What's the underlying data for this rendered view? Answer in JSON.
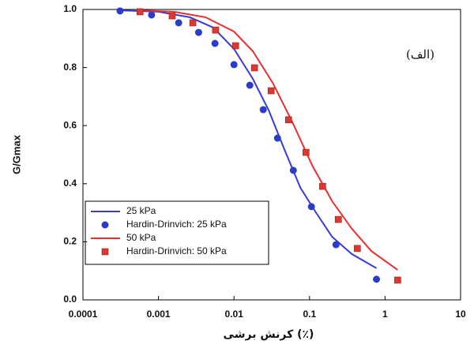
{
  "chart_data": {
    "type": "line",
    "xlabel": "کرنش برشی (٪)",
    "ylabel": "G/Gmax",
    "annotation": "(الف)",
    "xscale": "log",
    "xlim": [
      0.0001,
      10
    ],
    "xticks": [
      0.0001,
      0.001,
      0.01,
      0.1,
      1,
      10
    ],
    "ylim": [
      0,
      1
    ],
    "yticks": [
      {
        "value": 0,
        "label": "0.0"
      },
      0.2,
      0.4,
      0.6,
      0.8,
      {
        "value": 1,
        "label": "1.0"
      }
    ],
    "legend": "lower left",
    "series": [
      {
        "name": "25 kPa",
        "color": "#3a3ad8",
        "mode": "line",
        "x": [
          0.00031,
          0.001,
          0.0026,
          0.0053,
          0.01,
          0.0178,
          0.0289,
          0.0468,
          0.0758,
          0.123,
          0.199,
          0.363,
          0.77
        ],
        "values": [
          0.997,
          0.992,
          0.973,
          0.938,
          0.864,
          0.761,
          0.652,
          0.516,
          0.386,
          0.299,
          0.217,
          0.158,
          0.109
        ]
      },
      {
        "name": "Hardin-Drinvich: 25 kPa",
        "color": "#2a3cc8",
        "mode": "markers",
        "marker": "circle",
        "x": [
          0.00031,
          0.00081,
          0.00185,
          0.0034,
          0.0056,
          0.01,
          0.0162,
          0.0244,
          0.0377,
          0.061,
          0.106,
          0.224,
          0.77
        ],
        "values": [
          0.995,
          0.981,
          0.954,
          0.921,
          0.883,
          0.81,
          0.739,
          0.655,
          0.557,
          0.446,
          0.321,
          0.19,
          0.071
        ]
      },
      {
        "name": "50 kPa",
        "color": "#e83030",
        "mode": "line",
        "x": [
          0.00057,
          0.0016,
          0.0042,
          0.01,
          0.0178,
          0.0326,
          0.0596,
          0.109,
          0.199,
          0.363,
          0.66,
          1.47
        ],
        "values": [
          0.997,
          0.992,
          0.973,
          0.924,
          0.856,
          0.747,
          0.611,
          0.462,
          0.34,
          0.245,
          0.168,
          0.103
        ]
      },
      {
        "name": "Hardin-Drinvich: 50 kPa",
        "color": "#d63a30",
        "mode": "markers",
        "marker": "square",
        "x": [
          0.00057,
          0.00152,
          0.00285,
          0.0057,
          0.0105,
          0.0187,
          0.031,
          0.0528,
          0.0898,
          0.149,
          0.241,
          0.43,
          1.47
        ],
        "values": [
          0.992,
          0.978,
          0.954,
          0.929,
          0.875,
          0.799,
          0.72,
          0.62,
          0.508,
          0.391,
          0.277,
          0.177,
          0.068
        ]
      }
    ]
  }
}
